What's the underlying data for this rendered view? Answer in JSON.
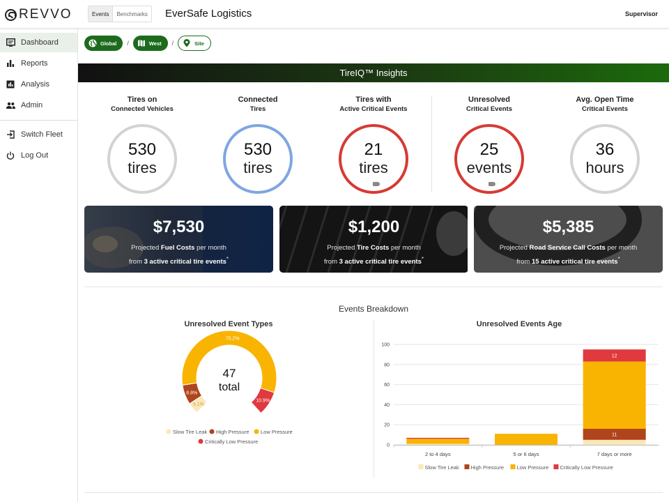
{
  "header": {
    "logo_text": "REVVO",
    "toggle": [
      "Events",
      "Benchmarks"
    ],
    "company": "EverSafe Logistics",
    "role": "Supervisor"
  },
  "sidebar": {
    "items": [
      {
        "label": "Dashboard",
        "icon": "dashboard-icon"
      },
      {
        "label": "Reports",
        "icon": "bar-chart-icon"
      },
      {
        "label": "Analysis",
        "icon": "analysis-icon"
      },
      {
        "label": "Admin",
        "icon": "people-icon"
      },
      {
        "label": "Switch Fleet",
        "icon": "switch-icon"
      },
      {
        "label": "Log Out",
        "icon": "power-icon"
      }
    ]
  },
  "breadcrumb": [
    "Global",
    "West",
    "Site"
  ],
  "banner": {
    "title": "TireIQ™ Insights"
  },
  "stats": [
    {
      "title1": "Tires on",
      "title2": "Connected Vehicles",
      "value": "530",
      "unit": "tires",
      "color": "#d3d3d3"
    },
    {
      "title1": "Connected",
      "title2": "Tires",
      "value": "530",
      "unit": "tires",
      "color": "#7fa6df"
    },
    {
      "title1": "Tires with",
      "title2": "Active Critical Events",
      "value": "21",
      "unit": "tires",
      "color": "#d73a34"
    },
    {
      "title1": "Unresolved",
      "title2": "Critical Events",
      "value": "25",
      "unit": "events",
      "color": "#d73a34"
    },
    {
      "title1": "Avg. Open Time",
      "title2": "Critical Events",
      "value": "36",
      "unit": "hours",
      "color": "#d3d3d3"
    }
  ],
  "cards": [
    {
      "amount": "$7,530",
      "pre": "Projected ",
      "bold": "Fuel Costs",
      "post": " per month",
      "from": "from ",
      "count": "3 active critical tire events",
      "mark": "*"
    },
    {
      "amount": "$1,200",
      "pre": "Projected ",
      "bold": "Tire Costs",
      "post": " per month",
      "from": "from ",
      "count": "3 active critical tire events",
      "mark": "*"
    },
    {
      "amount": "$5,385",
      "pre": "Projected ",
      "bold": "Road Service Call Costs",
      "post": " per month",
      "from": "from ",
      "count": "15 active critical tire events",
      "mark": "*"
    }
  ],
  "breakdown": {
    "title": "Events Breakdown"
  },
  "colors": {
    "slow_leak": "#fbe7b8",
    "high_pressure": "#b0441a",
    "low_pressure": "#f8b400",
    "critically_low": "#e0393e",
    "brand_green": "#1d6b1d"
  },
  "chart_data": [
    {
      "type": "pie",
      "title": "Unresolved Event Types",
      "center_value": "47",
      "center_label": "total",
      "categories": [
        "Slow Tire Leak",
        "High Pressure",
        "Low Pressure",
        "Critically Low Pressure"
      ],
      "values": [
        5.1,
        8.8,
        75.2,
        10.9
      ],
      "labels": [
        "5.1%",
        "8.8%",
        "75.2%",
        "10.9%"
      ]
    },
    {
      "type": "bar",
      "title": "Unresolved Events Age",
      "categories": [
        "2 to 4 days",
        "5 or 6 days",
        "7 days or more"
      ],
      "series": [
        {
          "name": "Slow Tire Leak",
          "values": [
            1,
            0,
            5
          ]
        },
        {
          "name": "High Pressure",
          "values": [
            0,
            0,
            11
          ]
        },
        {
          "name": "Low Pressure",
          "values": [
            5,
            11,
            67
          ]
        },
        {
          "name": "Critically Low Pressure",
          "values": [
            1,
            0,
            12
          ]
        }
      ],
      "data_labels": {
        "1": [
          "",
          "",
          "11"
        ],
        "3": [
          "",
          "",
          "12"
        ]
      },
      "ylim": [
        0,
        100
      ],
      "yticks": [
        0,
        20,
        40,
        60,
        80,
        100
      ],
      "grid": true,
      "legend": "bottom"
    }
  ]
}
